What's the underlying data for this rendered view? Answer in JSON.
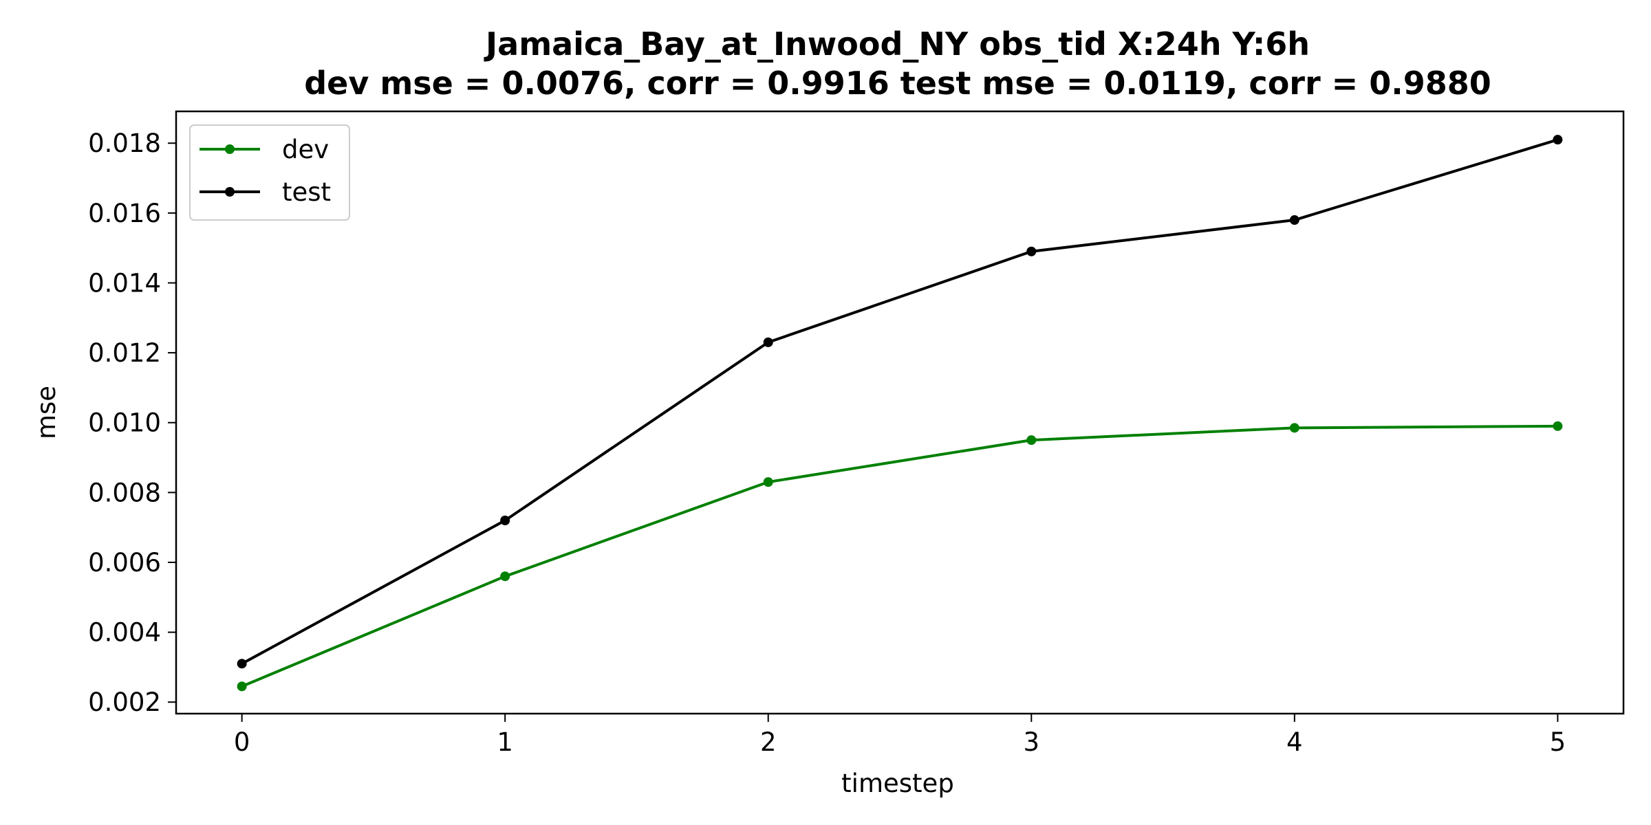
{
  "chart_data": {
    "type": "line",
    "title": "Jamaica_Bay_at_Inwood_NY   obs_tid   X:24h   Y:6h",
    "subtitle": "dev mse = 0.0076, corr = 0.9916   test mse = 0.0119, corr = 0.9880",
    "xlabel": "timestep",
    "ylabel": "mse",
    "x": [
      0,
      1,
      2,
      3,
      4,
      5
    ],
    "xticks": [
      "0",
      "1",
      "2",
      "3",
      "4",
      "5"
    ],
    "yticks": [
      "0.002",
      "0.004",
      "0.006",
      "0.008",
      "0.010",
      "0.012",
      "0.014",
      "0.016",
      "0.018"
    ],
    "xlim": [
      -0.25,
      5.25
    ],
    "ylim": [
      0.00167,
      0.01891
    ],
    "grid": false,
    "legend": "top-left",
    "series": [
      {
        "name": "dev",
        "color": "#008000",
        "values": [
          0.00245,
          0.0056,
          0.0083,
          0.0095,
          0.00985,
          0.0099
        ]
      },
      {
        "name": "test",
        "color": "#000000",
        "values": [
          0.0031,
          0.0072,
          0.0123,
          0.0149,
          0.0158,
          0.0181
        ]
      }
    ]
  }
}
